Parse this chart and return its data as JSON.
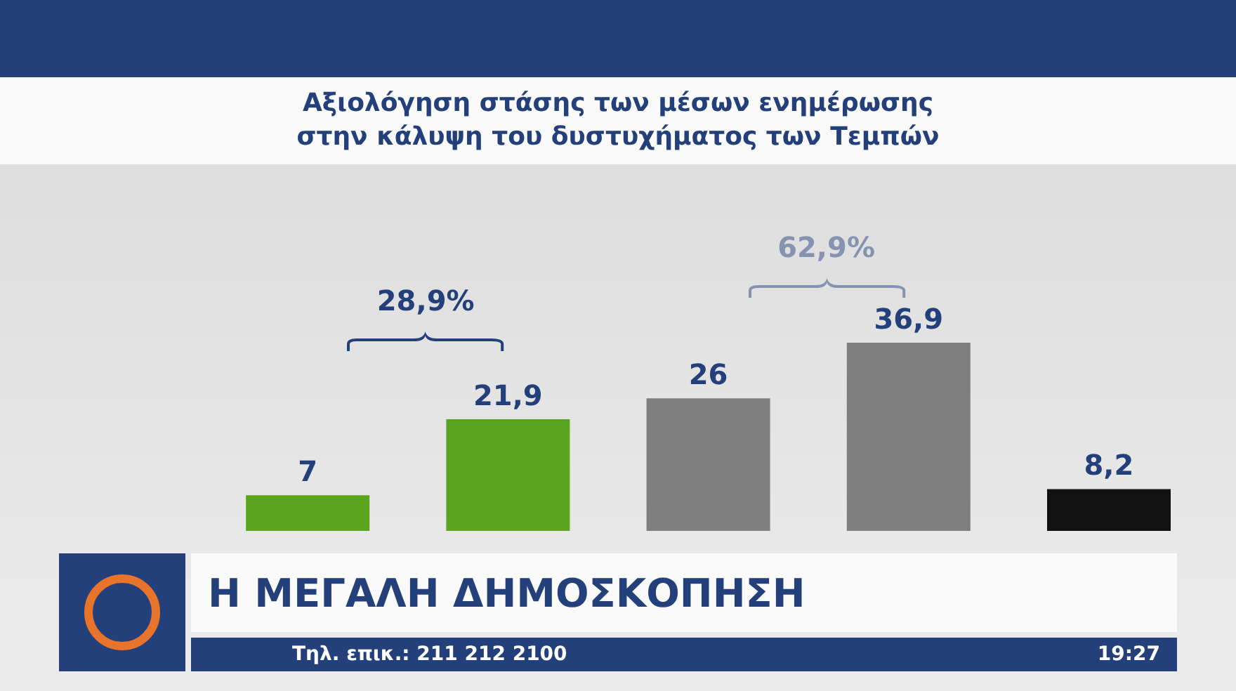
{
  "chart_data": {
    "type": "bar",
    "title": "Αξιολόγηση στάσης των μέσων ενημέρωσης στην κάλυψη του δυστυχήματος των Τεμπών",
    "categories": [
      null,
      null,
      null,
      null,
      null
    ],
    "values": [
      7,
      21.9,
      26,
      36.9,
      8.2
    ],
    "colors": [
      "#5ba41e",
      "#5ba41e",
      "#7f7f7f",
      "#7f7f7f",
      "#111111"
    ],
    "value_labels": [
      "7",
      "21,9",
      "26",
      "36,9",
      "8,2"
    ],
    "annotations": [
      "28,9%",
      "62,9%",
      "Η ΜΕΓΑΛΗ ΔΗΜΟΣΚΟΠΗΣΗ",
      "Τηλ. επικ.: 211 212 2100",
      "19:27"
    ],
    "grid": false,
    "legend": false
  }
}
